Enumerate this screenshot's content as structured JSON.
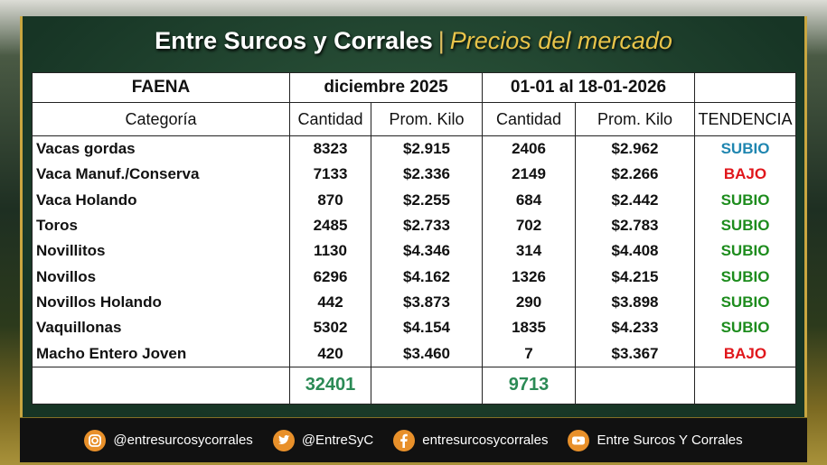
{
  "header": {
    "title": "Entre Surcos y Corrales",
    "separator": "|",
    "subtitle": "Precios del mercado"
  },
  "table": {
    "group_headers": [
      "FAENA",
      "diciembre 2025",
      "01-01 al 18-01-2026"
    ],
    "columns": [
      "Categoría",
      "Cantidad",
      "Prom. Kilo",
      "Cantidad",
      "Prom. Kilo",
      "TENDENCIA"
    ],
    "rows": [
      [
        "Vacas gordas",
        8323,
        "$2.915",
        2406,
        "$2.962",
        "SUBIO"
      ],
      [
        "Vaca Manuf./Conserva",
        7133,
        "$2.336",
        2149,
        "$2.266",
        "BAJO"
      ],
      [
        "Vaca Holando",
        870,
        "$2.255",
        684,
        "$2.442",
        "SUBIO"
      ],
      [
        "Toros",
        2485,
        "$2.733",
        702,
        "$2.783",
        "SUBIO"
      ],
      [
        "Novillitos",
        1130,
        "$4.346",
        314,
        "$4.408",
        "SUBIO"
      ],
      [
        "Novillos",
        6296,
        "$4.162",
        1326,
        "$4.215",
        "SUBIO"
      ],
      [
        "Novillos Holando",
        442,
        "$3.873",
        290,
        "$3.898",
        "SUBIO"
      ],
      [
        "Vaquillonas",
        5302,
        "$4.154",
        1835,
        "$4.233",
        "SUBIO"
      ],
      [
        "Macho Entero Joven",
        420,
        "$3.460",
        7,
        "$3.367",
        "BAJO"
      ]
    ],
    "trend_colors": [
      "#1f86b0",
      "#e0161b",
      "#1d8c1d",
      "#1d8c1d",
      "#1d8c1d",
      "#1d8c1d",
      "#1d8c1d",
      "#1d8c1d",
      "#e0161b"
    ],
    "totals": [
      32401,
      9713
    ],
    "totals_color": "#2b8a55"
  },
  "footer": {
    "instagram": "@entresurcosycorrales",
    "twitter": "@EntreSyC",
    "facebook": "entresurcosycorrales",
    "youtube": "Entre Surcos Y Corrales"
  }
}
